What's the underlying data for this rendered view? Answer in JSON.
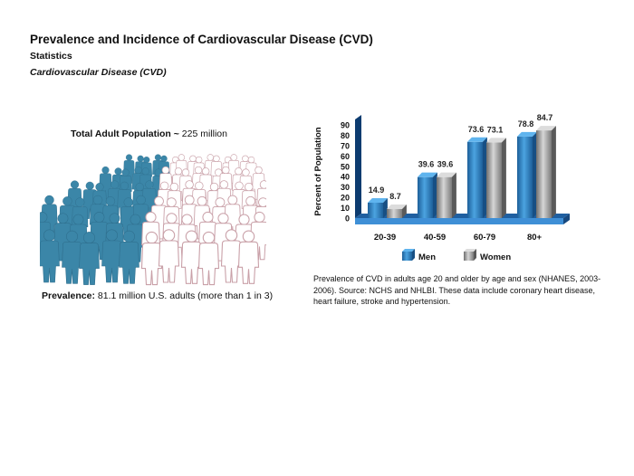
{
  "header": {
    "title": "Prevalence and Incidence of Cardiovascular Disease (CVD)",
    "subtitle": "Statistics",
    "subsubtitle": "Cardiovascular Disease (CVD)"
  },
  "population": {
    "label": "Total Adult Population",
    "tilde": " ~ ",
    "value": "225 million",
    "prevalence_label": "Prevalence:",
    "prevalence_value": " 81.1 million U.S. adults (more than 1 in 3)",
    "affected_fraction": 0.36
  },
  "chart_data": {
    "type": "bar",
    "title": "",
    "xlabel": "",
    "ylabel": "Percent of Population",
    "ylim": [
      0,
      90
    ],
    "yticks": [
      0,
      10,
      20,
      30,
      40,
      50,
      60,
      70,
      80,
      90
    ],
    "categories": [
      "20-39",
      "40-59",
      "60-79",
      "80+"
    ],
    "series": [
      {
        "name": "Men",
        "values": [
          14.9,
          39.6,
          73.6,
          78.8
        ],
        "color": "#2a7fc1"
      },
      {
        "name": "Women",
        "values": [
          8.7,
          39.6,
          73.1,
          84.7
        ],
        "color": "#9a9a9a"
      }
    ],
    "legend_position": "bottom",
    "grid": false
  },
  "caption": "Prevalence of CVD in adults age 20 and older by age and sex (NHANES, 2003-2006). Source: NCHS and NHLBI. These data include coronary heart disease, heart failure, stroke and hypertension.",
  "colors": {
    "men": "#2a7fc1",
    "women": "#9a9a9a",
    "floor": "#1f5fa0",
    "crowd_affected": "#3b86a8",
    "crowd_unaffected_outline": "#c9a0a8"
  }
}
